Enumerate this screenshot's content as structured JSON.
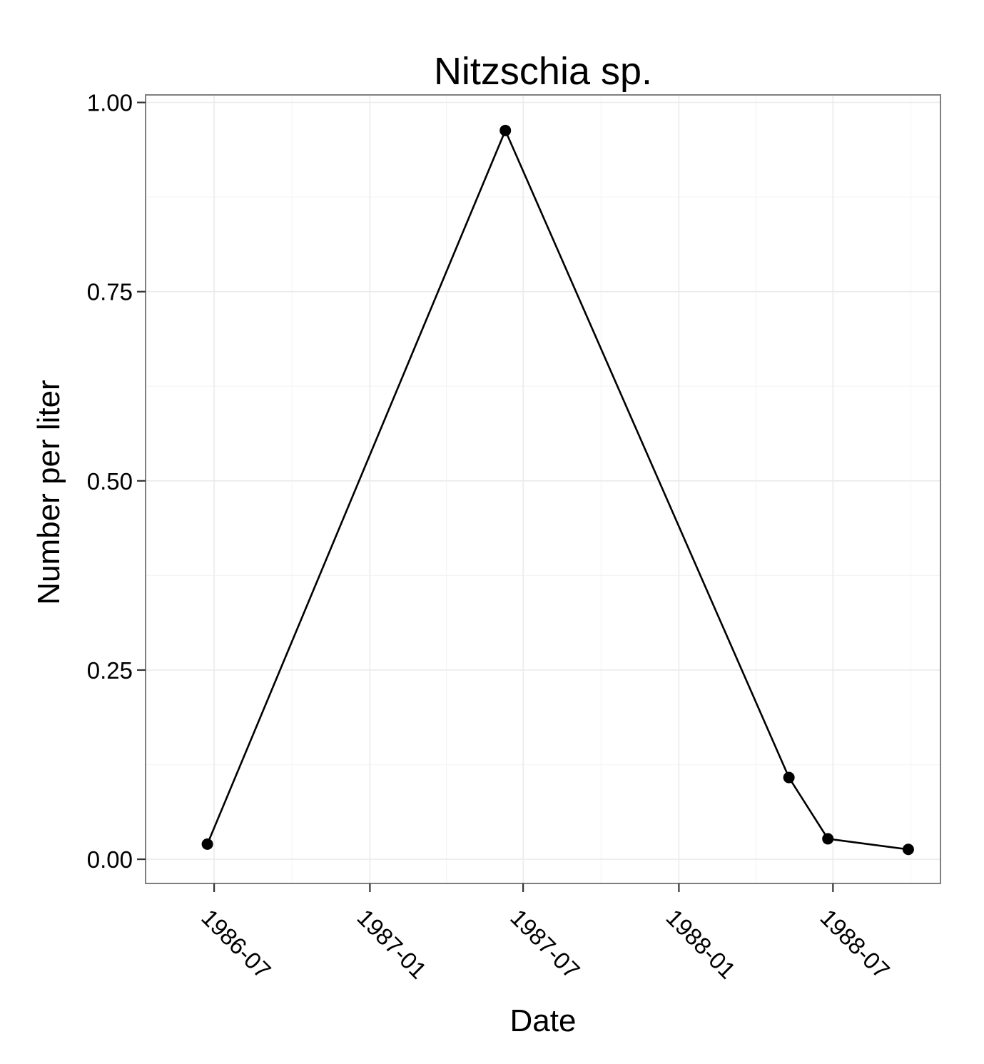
{
  "chart_data": {
    "type": "line",
    "title": "Nitzschia sp.",
    "xlabel": "Date",
    "ylabel": "Number per liter",
    "x_axis": {
      "kind": "date",
      "ticks": [
        "1986-07-01",
        "1987-01-01",
        "1987-07-01",
        "1988-01-01",
        "1988-07-01"
      ],
      "tick_labels": [
        "1986-07",
        "1987-01",
        "1987-07",
        "1988-01",
        "1988-07"
      ],
      "range": [
        "1986-04-11",
        "1988-11-05"
      ]
    },
    "y_axis": {
      "ticks": [
        0.0,
        0.25,
        0.5,
        0.75,
        1.0
      ],
      "tick_labels": [
        "0.00",
        "0.25",
        "0.50",
        "0.75",
        "1.00"
      ],
      "range": [
        -0.032,
        1.01
      ]
    },
    "grid": true,
    "legend": "none",
    "series": [
      {
        "color": "#000000",
        "points": [
          {
            "x": "1986-06-23",
            "y": 0.02
          },
          {
            "x": "1987-06-10",
            "y": 0.963
          },
          {
            "x": "1988-05-10",
            "y": 0.108
          },
          {
            "x": "1988-06-25",
            "y": 0.027
          },
          {
            "x": "1988-09-28",
            "y": 0.013
          }
        ]
      }
    ]
  }
}
